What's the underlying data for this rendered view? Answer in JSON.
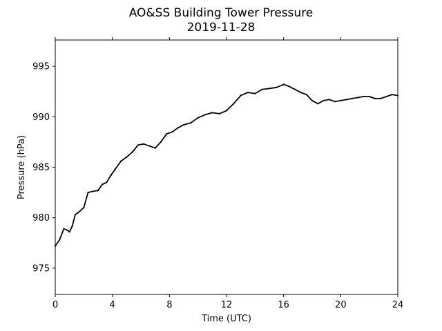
{
  "chart_data": {
    "type": "line",
    "title": "AO&SS Building Tower Pressure",
    "subtitle": "2019-11-28",
    "xlabel": "Time (UTC)",
    "ylabel": "Pressure (hPa)",
    "xlim": [
      0,
      24
    ],
    "ylim": [
      972.4,
      997.6
    ],
    "xticks": [
      0,
      4,
      8,
      12,
      16,
      20,
      24
    ],
    "yticks": [
      975,
      980,
      985,
      990,
      995
    ],
    "grid": false,
    "color": "#000000",
    "series": [
      {
        "x": [
          0,
          0.3,
          0.6,
          0.8,
          1.0,
          1.2,
          1.4,
          1.6,
          2.0,
          2.3,
          2.6,
          3.0,
          3.3,
          3.6,
          3.9,
          4.2,
          4.6,
          5.0,
          5.4,
          5.8,
          6.2,
          6.6,
          7.0,
          7.4,
          7.8,
          8.2,
          8.6,
          9.0,
          9.5,
          10.0,
          10.5,
          11.0,
          11.5,
          12.0,
          12.5,
          13.0,
          13.5,
          14.0,
          14.5,
          15.0,
          15.5,
          16.0,
          16.4,
          16.8,
          17.2,
          17.6,
          18.0,
          18.4,
          18.8,
          19.2,
          19.6,
          20.0,
          20.4,
          20.8,
          21.2,
          21.6,
          22.0,
          22.4,
          22.8,
          23.2,
          23.6,
          24.0
        ],
        "y": [
          977.2,
          977.8,
          978.9,
          978.8,
          978.6,
          979.2,
          980.3,
          980.5,
          981.0,
          982.5,
          982.6,
          982.7,
          983.3,
          983.5,
          984.2,
          984.8,
          985.6,
          986.0,
          986.5,
          987.2,
          987.3,
          987.1,
          986.9,
          987.5,
          988.3,
          988.5,
          988.9,
          989.2,
          989.4,
          989.9,
          990.2,
          990.4,
          990.3,
          990.6,
          991.3,
          992.1,
          992.4,
          992.3,
          992.7,
          992.8,
          992.9,
          993.2,
          993.0,
          992.7,
          992.4,
          992.2,
          991.6,
          991.3,
          991.6,
          991.7,
          991.5,
          991.6,
          991.7,
          991.8,
          991.9,
          992.0,
          992.0,
          991.8,
          991.8,
          992.0,
          992.2,
          992.1
        ]
      }
    ]
  }
}
